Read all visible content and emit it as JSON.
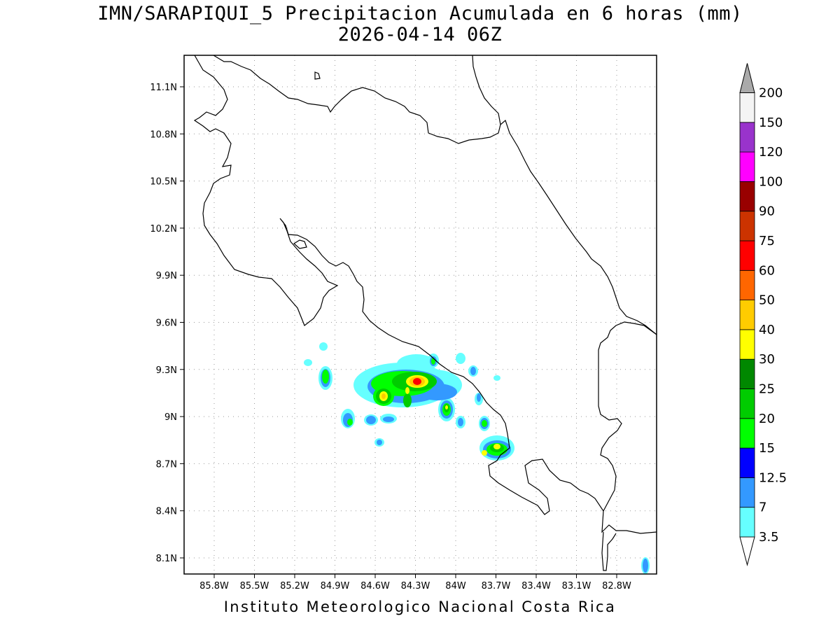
{
  "title": {
    "line1": "IMN/SARAPIQUI_5 Precipitacion Acumulada en 6 horas (mm)",
    "line2": "2026-04-14 06Z"
  },
  "credit": "Instituto Meteorologico Nacional Costa Rica",
  "axes": {
    "lat_ticks": [
      "11.1N",
      "10.8N",
      "10.5N",
      "10.2N",
      "9.9N",
      "9.6N",
      "9.3N",
      "9N",
      "8.7N",
      "8.4N",
      "8.1N"
    ],
    "lon_ticks": [
      "85.8W",
      "85.5W",
      "85.2W",
      "84.9W",
      "84.6W",
      "84.3W",
      "84W",
      "83.7W",
      "83.4W",
      "83.1W",
      "82.8W"
    ]
  },
  "colorbar": {
    "levels": [
      "3.5",
      "7",
      "12.5",
      "15",
      "20",
      "25",
      "30",
      "40",
      "50",
      "60",
      "75",
      "90",
      "100",
      "120",
      "150",
      "200"
    ],
    "colors": [
      "#66ffff",
      "#3399ff",
      "#0000ff",
      "#00ff00",
      "#00cc00",
      "#008800",
      "#ffff00",
      "#ffcc00",
      "#ff6600",
      "#ff0000",
      "#cc3300",
      "#990000",
      "#ff00ff",
      "#9933cc",
      "#f4f4f4",
      "#aaaaaa"
    ]
  }
}
